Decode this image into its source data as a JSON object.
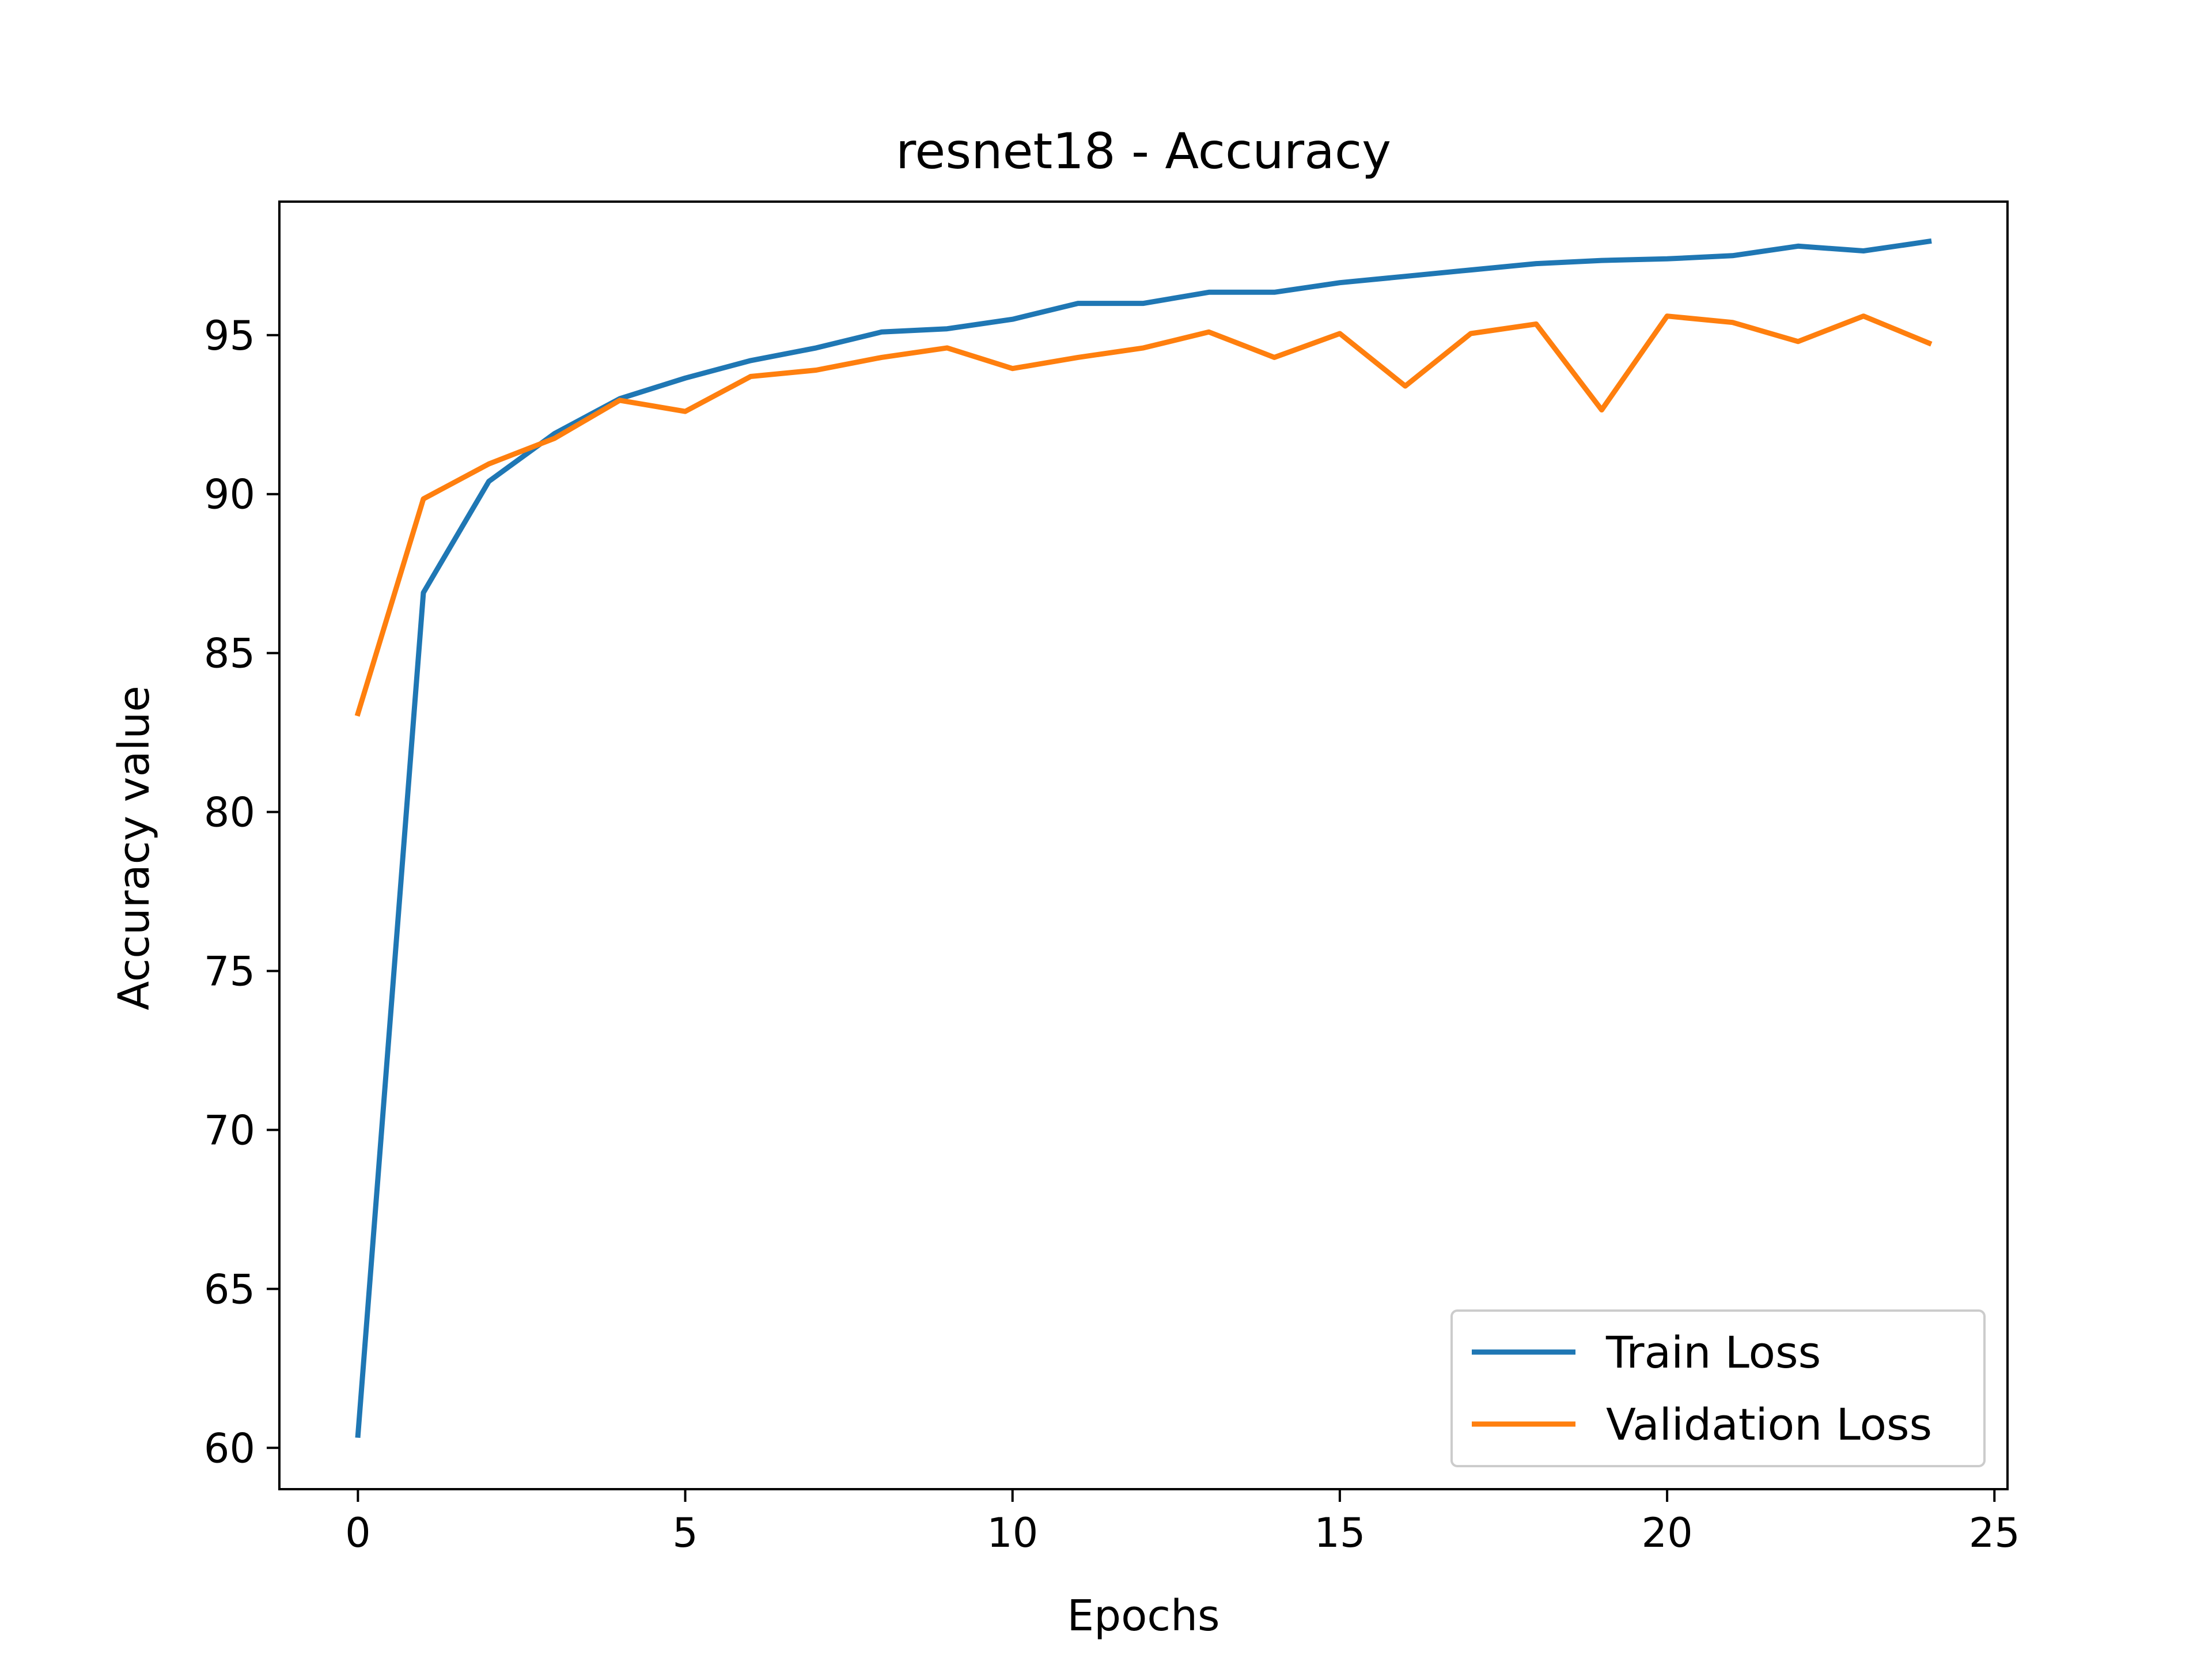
{
  "chart_data": {
    "type": "line",
    "title": "resnet18 - Accuracy",
    "xlabel": "Epochs",
    "ylabel": "Accuracy value",
    "xlim": [
      -1.2,
      25.2
    ],
    "ylim": [
      58.7,
      99.2
    ],
    "xticks": [
      0,
      5,
      10,
      15,
      20,
      25
    ],
    "yticks": [
      60,
      65,
      70,
      75,
      80,
      85,
      90,
      95
    ],
    "grid": false,
    "legend_position": "lower right",
    "x": [
      0,
      1,
      2,
      3,
      4,
      5,
      6,
      7,
      8,
      9,
      10,
      11,
      12,
      13,
      14,
      15,
      16,
      17,
      18,
      19,
      20,
      21,
      22,
      23,
      24
    ],
    "series": [
      {
        "name": "Train Loss",
        "color": "#1f77b4",
        "values": [
          60.4,
          86.9,
          90.4,
          91.9,
          93.0,
          93.65,
          94.2,
          94.6,
          95.1,
          95.2,
          95.5,
          96.0,
          96.0,
          96.35,
          96.35,
          96.65,
          96.85,
          97.05,
          97.25,
          97.35,
          97.4,
          97.5,
          97.8,
          97.65,
          97.95
        ]
      },
      {
        "name": "Validation Loss",
        "color": "#ff7f0e",
        "values": [
          83.1,
          89.85,
          90.95,
          91.75,
          92.95,
          92.6,
          93.7,
          93.9,
          94.3,
          94.6,
          93.95,
          94.3,
          94.6,
          95.1,
          94.3,
          95.05,
          93.4,
          95.05,
          95.35,
          92.65,
          95.6,
          95.4,
          94.8,
          95.6,
          94.75
        ]
      }
    ]
  }
}
